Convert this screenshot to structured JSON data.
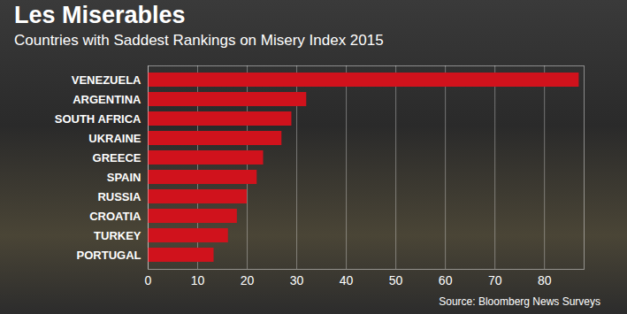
{
  "chart_data": {
    "type": "bar",
    "orientation": "horizontal",
    "title": "Les Miserables",
    "subtitle": "Countries with Saddest Rankings on Misery Index 2015",
    "source": "Source: Bloomberg News Surveys",
    "categories": [
      "VENEZUELA",
      "ARGENTINA",
      "SOUTH AFRICA",
      "UKRAINE",
      "GREECE",
      "SPAIN",
      "RUSSIA",
      "CROATIA",
      "TURKEY",
      "PORTUGAL"
    ],
    "values": [
      87,
      32,
      29,
      27,
      23.3,
      22,
      20,
      18,
      16.2,
      13.3
    ],
    "color": "#d0121c",
    "xlim": [
      0,
      88
    ],
    "xticks": [
      0,
      10,
      20,
      30,
      40,
      50,
      60,
      70,
      80
    ],
    "grid": true
  }
}
